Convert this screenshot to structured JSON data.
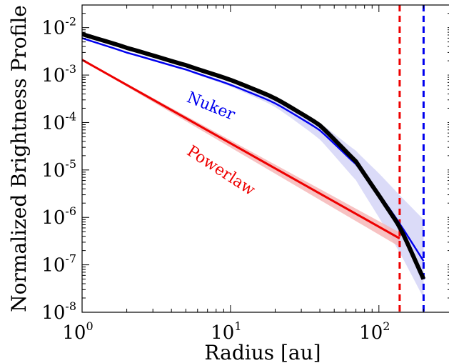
{
  "chart_data": {
    "type": "line",
    "xlabel": "Radius [au]",
    "ylabel": "Normalized Brightness Profile",
    "xscale": "log",
    "yscale": "log",
    "xlim": [
      1,
      300
    ],
    "ylim": [
      1e-08,
      0.03
    ],
    "x_ticks": [
      {
        "base": "10",
        "exp": "0",
        "value": 1
      },
      {
        "base": "10",
        "exp": "1",
        "value": 10
      },
      {
        "base": "10",
        "exp": "2",
        "value": 100
      }
    ],
    "y_ticks": [
      {
        "base": "10",
        "exp": "-2",
        "value": 0.01
      },
      {
        "base": "10",
        "exp": "-3",
        "value": 0.001
      },
      {
        "base": "10",
        "exp": "-4",
        "value": 0.0001
      },
      {
        "base": "10",
        "exp": "-5",
        "value": 1e-05
      },
      {
        "base": "10",
        "exp": "-6",
        "value": 1e-06
      },
      {
        "base": "10",
        "exp": "-7",
        "value": 1e-07
      },
      {
        "base": "10",
        "exp": "-8",
        "value": 1e-08
      }
    ],
    "series": [
      {
        "key": "black",
        "color": "#000000",
        "x": [
          1,
          2,
          5,
          10,
          20,
          40,
          70,
          100,
          140,
          200
        ],
        "y": [
          0.0073,
          0.0038,
          0.0016,
          0.0008,
          0.00033,
          9e-05,
          1.5e-05,
          2.9e-06,
          6e-07,
          5e-08
        ]
      },
      {
        "key": "nuker",
        "name": "Nuker",
        "color": "#0000ee",
        "band_color": "#ccccf5",
        "x": [
          1,
          2,
          5,
          10,
          20,
          40,
          70,
          100,
          140,
          200
        ],
        "y": [
          0.006,
          0.003,
          0.0013,
          0.00063,
          0.00026,
          7e-05,
          1.3e-05,
          3.2e-06,
          7e-07,
          1.2e-07
        ],
        "band_lower": [
          0.0057,
          0.0029,
          0.00123,
          0.00058,
          0.00022,
          4.5e-05,
          6e-06,
          1e-06,
          1.7e-07,
          2e-08
        ],
        "band_upper": [
          0.0063,
          0.0032,
          0.00138,
          0.00068,
          0.0003,
          0.0001,
          2.5e-05,
          8.5e-06,
          2.8e-06,
          9e-07
        ]
      },
      {
        "key": "powerlaw",
        "name": "Powerlaw",
        "color": "#ee0000",
        "band_color": "#f5b3b3",
        "x": [
          1,
          138
        ],
        "y": [
          0.0021,
          3.6e-07
        ],
        "band_lower": [
          0.00205,
          2.4e-07
        ],
        "band_upper": [
          0.00215,
          4.8e-07
        ]
      }
    ],
    "vlines": [
      {
        "x": 138,
        "color": "#ee0000",
        "style": "dashed"
      },
      {
        "x": 200,
        "color": "#0000ee",
        "style": "dashed"
      }
    ],
    "annotations": [
      {
        "text": "Nuker",
        "color": "#0000ee",
        "x": 5,
        "y": 0.00028,
        "angle": 22
      },
      {
        "text": "Powerlaw",
        "color": "#ee0000",
        "x": 5,
        "y": 2.2e-05,
        "angle": 33
      }
    ],
    "grid": false,
    "legend": "none"
  }
}
